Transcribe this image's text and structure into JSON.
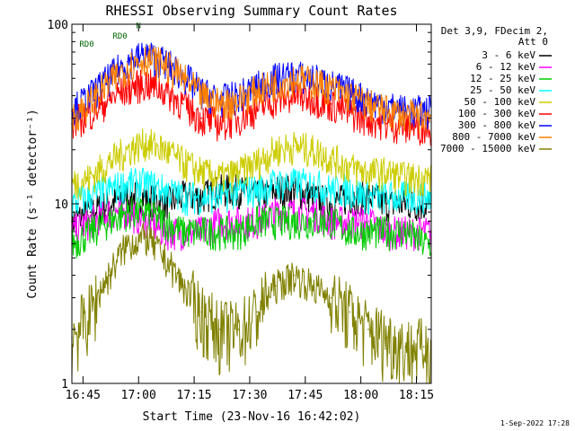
{
  "chart_data": {
    "type": "line",
    "title": "RHESSI Observing Summary Count Rates",
    "xlabel": "Start Time (23-Nov-16 16:42:02)",
    "ylabel": "Count Rate (s⁻¹ detector⁻¹)",
    "y_scale": "log",
    "ylim": [
      1,
      100
    ],
    "xlim_minutes": [
      0,
      97
    ],
    "x_ticks": [
      {
        "label": "16:45",
        "minute": 3
      },
      {
        "label": "17:00",
        "minute": 18
      },
      {
        "label": "17:15",
        "minute": 33
      },
      {
        "label": "17:30",
        "minute": 48
      },
      {
        "label": "17:45",
        "minute": 63
      },
      {
        "label": "18:00",
        "minute": 78
      },
      {
        "label": "18:15",
        "minute": 93
      }
    ],
    "y_ticks": [
      {
        "label": "1",
        "value": 1
      },
      {
        "label": "10",
        "value": 10
      },
      {
        "label": "100",
        "value": 100
      }
    ],
    "legend_header": "Det 3,9, FDecim 2, Att 0",
    "legend_position": "right",
    "annotations": [
      {
        "text": "N",
        "minute": 18,
        "value": 95
      },
      {
        "text": "RD0",
        "minute": 4,
        "value": 75
      },
      {
        "text": "RD0",
        "minute": 13,
        "value": 83
      }
    ],
    "footer": "1-Sep-2022 17:28",
    "series": [
      {
        "name": "3 - 6 keV",
        "color": "#000000",
        "x": [
          0,
          5,
          10,
          15,
          20,
          25,
          30,
          35,
          40,
          45,
          50,
          55,
          60,
          65,
          70,
          75,
          80,
          85,
          90,
          95
        ],
        "values": [
          8,
          9,
          10,
          11,
          11,
          10,
          11,
          11,
          12,
          12,
          11,
          12,
          12,
          11,
          10,
          11,
          11,
          10,
          10,
          10
        ]
      },
      {
        "name": "6 - 12 keV",
        "color": "#ff00ff",
        "x": [
          0,
          5,
          10,
          15,
          20,
          25,
          30,
          35,
          40,
          45,
          50,
          55,
          60,
          65,
          70,
          75,
          80,
          85,
          90,
          95
        ],
        "values": [
          7,
          8,
          9,
          9,
          8,
          7,
          7,
          7,
          8,
          8,
          8,
          9,
          9,
          9,
          8,
          8,
          8,
          7,
          7,
          7
        ]
      },
      {
        "name": "12 - 25 keV",
        "color": "#00cc00",
        "x": [
          0,
          5,
          10,
          15,
          20,
          25,
          30,
          35,
          40,
          45,
          50,
          55,
          60,
          65,
          70,
          75,
          80,
          85,
          90,
          95
        ],
        "values": [
          6,
          7,
          8,
          9,
          9,
          8,
          7,
          7,
          7,
          7,
          8,
          8,
          8,
          8,
          8,
          7,
          7,
          7,
          7,
          6
        ]
      },
      {
        "name": "25 - 50 keV",
        "color": "#00ffff",
        "x": [
          0,
          5,
          10,
          15,
          20,
          25,
          30,
          35,
          40,
          45,
          50,
          55,
          60,
          65,
          70,
          75,
          80,
          85,
          90,
          95
        ],
        "values": [
          10,
          11,
          12,
          13,
          13,
          12,
          11,
          11,
          11,
          12,
          12,
          13,
          13,
          13,
          12,
          12,
          11,
          11,
          11,
          11
        ]
      },
      {
        "name": "50 - 100 keV",
        "color": "#cccc00",
        "x": [
          0,
          5,
          10,
          15,
          20,
          25,
          30,
          35,
          40,
          45,
          50,
          55,
          60,
          65,
          70,
          75,
          80,
          85,
          90,
          95
        ],
        "values": [
          13,
          14,
          17,
          20,
          22,
          20,
          17,
          15,
          14,
          15,
          17,
          20,
          21,
          20,
          18,
          16,
          15,
          15,
          14,
          14
        ]
      },
      {
        "name": "100 - 300 keV",
        "color": "#ff0000",
        "x": [
          0,
          5,
          10,
          15,
          20,
          25,
          30,
          35,
          40,
          45,
          50,
          55,
          60,
          65,
          70,
          75,
          80,
          85,
          90,
          95
        ],
        "values": [
          28,
          32,
          38,
          44,
          47,
          43,
          36,
          30,
          28,
          30,
          34,
          38,
          40,
          39,
          36,
          32,
          30,
          28,
          27,
          27
        ]
      },
      {
        "name": "300 - 800 keV",
        "color": "#0000ff",
        "x": [
          0,
          5,
          10,
          15,
          20,
          25,
          30,
          35,
          40,
          45,
          50,
          55,
          60,
          65,
          70,
          75,
          80,
          85,
          90,
          95
        ],
        "values": [
          33,
          40,
          50,
          62,
          68,
          62,
          52,
          42,
          38,
          40,
          45,
          50,
          52,
          50,
          46,
          42,
          38,
          35,
          33,
          33
        ]
      },
      {
        "name": "800 - 7000 keV",
        "color": "#ff8000",
        "x": [
          0,
          5,
          10,
          15,
          20,
          25,
          30,
          35,
          40,
          45,
          50,
          55,
          60,
          65,
          70,
          75,
          80,
          85,
          90,
          95
        ],
        "values": [
          30,
          37,
          47,
          58,
          65,
          60,
          50,
          40,
          36,
          38,
          43,
          47,
          50,
          48,
          44,
          40,
          36,
          33,
          31,
          31
        ]
      },
      {
        "name": "7000 - 15000 keV",
        "color": "#808000",
        "x": [
          0,
          5,
          10,
          15,
          20,
          25,
          30,
          35,
          40,
          45,
          50,
          55,
          60,
          65,
          70,
          75,
          80,
          85,
          90,
          95
        ],
        "values": [
          1.8,
          2.5,
          4,
          6,
          6.5,
          5,
          3.5,
          2.5,
          2,
          2,
          2.5,
          3.5,
          4,
          3.5,
          3,
          2.5,
          2,
          1.8,
          1.6,
          1.6
        ]
      }
    ]
  }
}
